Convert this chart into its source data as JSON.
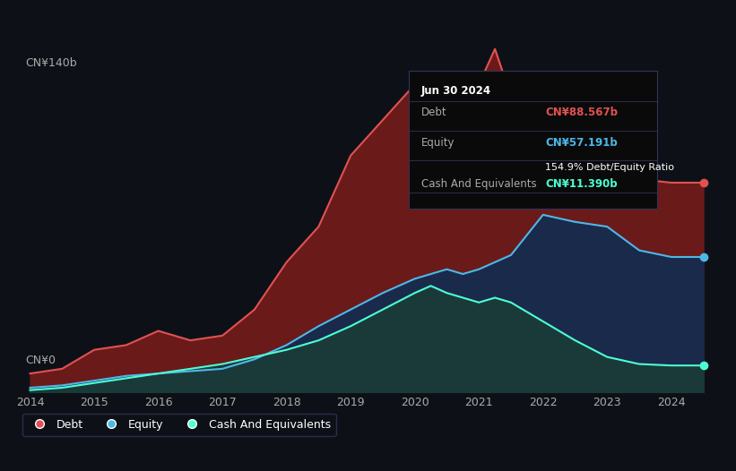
{
  "background_color": "#0d1117",
  "plot_bg_color": "#0d1117",
  "title": "Jun 30 2024",
  "ylabel_top": "CN¥140b",
  "ylabel_bottom": "CN¥0",
  "years": [
    2014,
    2014.5,
    2015,
    2015.5,
    2016,
    2016.5,
    2017,
    2017.5,
    2018,
    2018.5,
    2019,
    2019.5,
    2020,
    2020.25,
    2020.5,
    2020.75,
    2021,
    2021.25,
    2021.5,
    2022,
    2022.5,
    2023,
    2023.5,
    2024,
    2024.5
  ],
  "debt": [
    8,
    10,
    18,
    20,
    26,
    22,
    24,
    35,
    55,
    70,
    100,
    115,
    130,
    118,
    125,
    108,
    130,
    145,
    125,
    110,
    100,
    100,
    90,
    88.567,
    88.567
  ],
  "equity": [
    2,
    3,
    5,
    7,
    8,
    9,
    10,
    14,
    20,
    28,
    35,
    42,
    48,
    50,
    52,
    50,
    52,
    55,
    58,
    75,
    72,
    70,
    60,
    57.191,
    57.191
  ],
  "cash": [
    1,
    2,
    4,
    6,
    8,
    10,
    12,
    15,
    18,
    22,
    28,
    35,
    42,
    45,
    42,
    40,
    38,
    40,
    38,
    30,
    22,
    15,
    12,
    11.39,
    11.39
  ],
  "debt_color": "#e05252",
  "equity_color": "#4db8e8",
  "cash_color": "#4dffd4",
  "debt_fill": "#6b1a1a",
  "equity_fill": "#1a2a4a",
  "cash_fill": "#1a3a3a",
  "ylim": [
    0,
    160
  ],
  "xlim": [
    2013.8,
    2024.8
  ],
  "xticks": [
    2014,
    2015,
    2016,
    2017,
    2018,
    2019,
    2020,
    2021,
    2022,
    2023,
    2024
  ],
  "grid_color": "#2a3040",
  "tooltip_bg": "#0a0a0a",
  "tooltip_border": "#333344",
  "tooltip_title": "Jun 30 2024",
  "tooltip_debt_label": "Debt",
  "tooltip_debt_value": "CN¥88.567b",
  "tooltip_equity_label": "Equity",
  "tooltip_equity_value": "CN¥57.191b",
  "tooltip_ratio": "154.9% Debt/Equity Ratio",
  "tooltip_cash_label": "Cash And Equivalents",
  "tooltip_cash_value": "CN¥11.390b"
}
